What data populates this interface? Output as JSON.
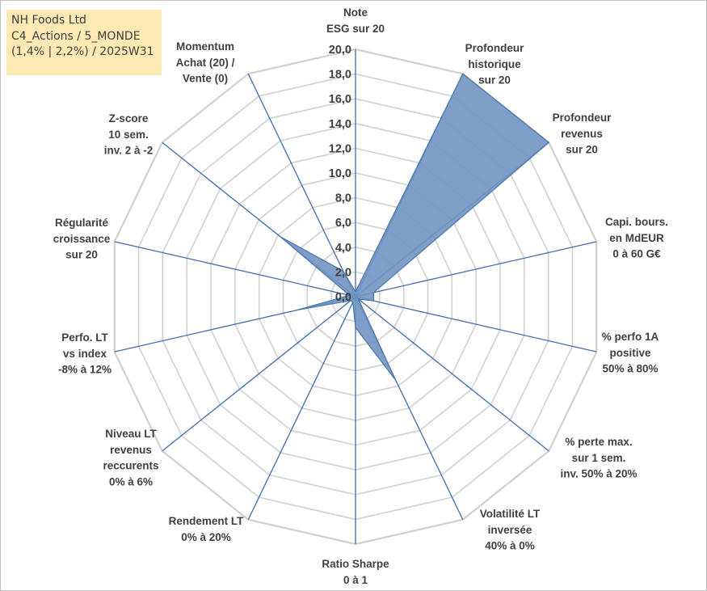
{
  "info_box": {
    "line1": "NH Foods Ltd",
    "line2": "C4_Actions / 5_MONDE",
    "line3": "(1,4% | 2,2%) / 2025W31"
  },
  "colors": {
    "fill": "#6f95c2",
    "stroke": "#4a76ad",
    "spoke": "#3e6db0",
    "grid": "#d0d0d0",
    "box": "#fde9b4"
  },
  "chart_data": {
    "type": "radar",
    "rmin": 0,
    "rmax": 20,
    "tick_step": 2,
    "tick_labels": [
      "0,0",
      "2,0",
      "4,0",
      "6,0",
      "8,0",
      "10,0",
      "12,0",
      "14,0",
      "16,0",
      "18,0",
      "20,0"
    ],
    "categories": [
      [
        "Note",
        "ESG sur 20"
      ],
      [
        "Profondeur",
        "historique",
        "sur 20"
      ],
      [
        "Profondeur",
        "revenus",
        "sur 20"
      ],
      [
        "Capi. bours.",
        "en MdEUR",
        "0 à 60 G€"
      ],
      [
        "% perfo 1A",
        "positive",
        "50% à 80%"
      ],
      [
        "% perte max.",
        "sur 1 sem.",
        "inv. 50% à 20%"
      ],
      [
        "Volatilité LT",
        "inversée",
        "40% à 0%"
      ],
      [
        "Ratio Sharpe",
        "0 à 1"
      ],
      [
        "Rendement LT",
        "0% à 20%"
      ],
      [
        "Niveau LT",
        "revenus",
        "reccurents",
        "0% à 6%"
      ],
      [
        "Perfo. LT",
        "vs index",
        "-8% à 12%"
      ],
      [
        "Régularité",
        "croissance",
        "sur 20"
      ],
      [
        "Z-score",
        "10 sem.",
        "inv. 2 à -2"
      ],
      [
        "Momentum",
        "Achat (20) /",
        "Vente (0)"
      ]
    ],
    "series": [
      {
        "values": [
          0.4,
          20,
          20,
          1.5,
          1.5,
          0.3,
          7.5,
          2.5,
          0.5,
          0.5,
          4.9,
          0.5,
          7.8,
          2.3
        ]
      }
    ],
    "grid": true,
    "legend": "none"
  }
}
